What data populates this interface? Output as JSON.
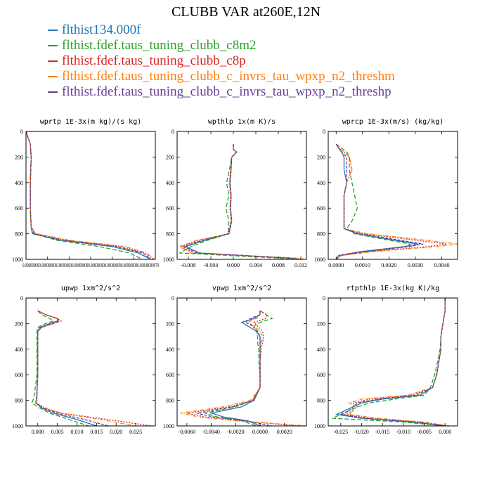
{
  "title": "CLUBB VAR at260E,12N",
  "legend": [
    {
      "label": "flthist134.000f",
      "color": "#1f77b4"
    },
    {
      "label": "flthist.fdef.taus_tuning_clubb_c8m2",
      "color": "#2ca02c"
    },
    {
      "label": "flthist.fdef.taus_tuning_clubb_c8p",
      "color": "#d62728"
    },
    {
      "label": "flthist.fdef.taus_tuning_clubb_c_invrs_tau_wpxp_n2_threshm",
      "color": "#ff7f0e"
    },
    {
      "label": "flthist.fdef.taus_tuning_clubb_c_invrs_tau_wpxp_n2_threshp",
      "color": "#6a3d9a"
    }
  ],
  "series_colors": [
    "#1f77b4",
    "#2ca02c",
    "#d62728",
    "#ff7f0e",
    "#6a3d9a"
  ],
  "chart_data": [
    {
      "type": "line",
      "title": "wprtp  1E-3x(m kg)/(s kg)",
      "xlim": [
        0,
        3e-10
      ],
      "ylim": [
        1000,
        0
      ],
      "y_ticks": [
        "0",
        "200",
        "400",
        "600",
        "800",
        "1000"
      ],
      "x_tick_labels": "0.000000000.000000000.000000000.000000000.000000000.000000000.000000000.00000000970",
      "y": [
        0,
        100,
        200,
        400,
        600,
        750,
        800,
        850,
        900,
        950,
        1000
      ],
      "series": [
        {
          "x": [
            0,
            1e-11,
            1.2e-11,
            1e-11,
            1e-11,
            1.2e-11,
            1.5e-11,
            8e-11,
            2e-10,
            2.6e-10,
            2.9e-10
          ]
        },
        {
          "x": [
            0,
            1e-11,
            1.2e-11,
            1e-11,
            1e-11,
            1.2e-11,
            2e-11,
            7e-11,
            1.7e-10,
            2.4e-10,
            2.7e-10
          ]
        },
        {
          "x": [
            0,
            1e-11,
            1.2e-11,
            1e-11,
            1e-11,
            1.2e-11,
            2e-11,
            9.5e-11,
            2.2e-10,
            2.75e-10,
            2.95e-10
          ]
        },
        {
          "x": [
            0,
            1e-11,
            1.2e-11,
            1e-11,
            1e-11,
            1.2e-11,
            2.5e-11,
            1e-10,
            2.3e-10,
            2.8e-10,
            2.98e-10
          ]
        },
        {
          "x": [
            0,
            1e-11,
            1.2e-11,
            1e-11,
            1e-11,
            1.2e-11,
            1.8e-11,
            8.5e-11,
            2.1e-10,
            2.7e-10,
            2.9e-10
          ]
        }
      ]
    },
    {
      "type": "line",
      "title": "wpthlp  1x(m K)/s",
      "xlim": [
        -0.01,
        0.013
      ],
      "ylim": [
        1000,
        0
      ],
      "x_ticks": [
        -0.008,
        -0.004,
        0.0,
        0.004,
        0.008,
        0.012
      ],
      "x_tick_labels": [
        "-0.008",
        "-0.004",
        "0.000",
        "0.004",
        "0.008",
        "0.012"
      ],
      "y_ticks": [
        "0",
        "200",
        "400",
        "600",
        "800",
        "1000"
      ],
      "y": [
        100,
        140,
        160,
        180,
        200,
        300,
        400,
        500,
        600,
        700,
        800,
        850,
        900,
        950,
        990,
        1000
      ],
      "series": [
        {
          "x": [
            0.0,
            0.0,
            0.0005,
            0.0002,
            -0.0003,
            -0.0004,
            -0.0006,
            -0.0004,
            -0.0005,
            -0.0003,
            -0.0008,
            -0.005,
            -0.0085,
            -0.006,
            0.01,
            0.012
          ]
        },
        {
          "x": [
            0.0,
            0.0,
            0.0006,
            0.0003,
            -0.0003,
            -0.0007,
            -0.0012,
            -0.0008,
            -0.0013,
            -0.0008,
            -0.0009,
            -0.0045,
            -0.0075,
            -0.0095,
            0.008,
            0.011
          ]
        },
        {
          "x": [
            0.0,
            0.0,
            0.0005,
            0.0002,
            -0.0003,
            -0.0005,
            -0.0007,
            -0.0005,
            -0.0006,
            -0.0004,
            -0.001,
            -0.006,
            -0.0092,
            -0.007,
            0.01,
            0.012
          ]
        },
        {
          "x": [
            0.0,
            0.0,
            0.0005,
            0.0002,
            -0.0003,
            -0.0004,
            -0.0006,
            -0.0004,
            -0.0005,
            -0.0003,
            -0.0007,
            -0.0065,
            -0.0096,
            -0.0075,
            0.011,
            0.013
          ]
        },
        {
          "x": [
            0.0,
            0.0,
            0.0005,
            0.0002,
            -0.0003,
            -0.0004,
            -0.0006,
            -0.0004,
            -0.0005,
            -0.0003,
            -0.0008,
            -0.0055,
            -0.0088,
            -0.0065,
            0.01,
            0.012
          ]
        }
      ]
    },
    {
      "type": "line",
      "title": "wprcp  1E-3x(m/s) (kg/kg)",
      "xlim": [
        -0.0003,
        0.0046
      ],
      "ylim": [
        1000,
        0
      ],
      "x_ticks": [
        0.0,
        0.001,
        0.002,
        0.003,
        0.004
      ],
      "x_tick_labels": [
        "0.0000",
        "0.0010",
        "0.0020",
        "0.0030",
        "0.0040"
      ],
      "y_ticks": [
        "0",
        "200",
        "400",
        "600",
        "800",
        "1000"
      ],
      "y": [
        100,
        130,
        160,
        200,
        300,
        400,
        500,
        600,
        700,
        760,
        800,
        850,
        880,
        900,
        940,
        970,
        1000
      ],
      "series": [
        {
          "x": [
            0.0,
            0.0001,
            0.0002,
            0.0003,
            0.0003,
            0.0004,
            0.0003,
            0.0003,
            0.0003,
            0.0003,
            0.0008,
            0.0022,
            0.0031,
            0.0026,
            0.0009,
            0.0001,
            0.0
          ]
        },
        {
          "x": [
            0.0,
            0.0002,
            0.0004,
            0.0005,
            0.0005,
            0.0006,
            0.0007,
            0.0008,
            0.0006,
            0.0004,
            0.0007,
            0.002,
            0.0028,
            0.0027,
            0.0012,
            0.0002,
            0.0
          ]
        },
        {
          "x": [
            0.0,
            0.0001,
            0.0003,
            0.0005,
            0.0006,
            0.0004,
            0.0003,
            0.0003,
            0.0003,
            0.0003,
            0.001,
            0.003,
            0.0042,
            0.0035,
            0.0012,
            0.0002,
            0.0
          ]
        },
        {
          "x": [
            0.0,
            0.0001,
            0.0003,
            0.0005,
            0.0006,
            0.0004,
            0.0003,
            0.0003,
            0.0003,
            0.0003,
            0.0012,
            0.0034,
            0.0046,
            0.0038,
            0.0014,
            0.0002,
            0.0
          ]
        },
        {
          "x": [
            0.0,
            0.0001,
            0.0002,
            0.0004,
            0.0004,
            0.0004,
            0.0003,
            0.0003,
            0.0003,
            0.0003,
            0.0009,
            0.0024,
            0.0033,
            0.0028,
            0.001,
            0.0001,
            0.0
          ]
        }
      ]
    },
    {
      "type": "line",
      "title": "upwp  1xm^2/s^2",
      "xlim": [
        -0.003,
        0.03
      ],
      "ylim": [
        1000,
        0
      ],
      "x_ticks": [
        0.0,
        0.005,
        0.01,
        0.015,
        0.02,
        0.025
      ],
      "x_tick_labels": [
        "0.000",
        "0.005",
        "0.010",
        "0.015",
        "0.020",
        "0.025"
      ],
      "y_ticks": [
        "0",
        "200",
        "400",
        "600",
        "800",
        "1000"
      ],
      "y": [
        100,
        130,
        160,
        180,
        200,
        230,
        260,
        300,
        400,
        600,
        780,
        820,
        860,
        900,
        950,
        1000
      ],
      "series": [
        {
          "x": [
            0.0,
            0.002,
            0.005,
            0.005,
            0.003,
            0.0005,
            0.0,
            0.0,
            0.0,
            0.0,
            -0.0003,
            -0.0005,
            0.001,
            0.004,
            0.01,
            0.015
          ]
        },
        {
          "x": [
            0.0,
            0.001,
            0.003,
            0.004,
            0.002,
            0.0,
            -0.0002,
            -0.0002,
            -0.0002,
            -0.0002,
            -0.001,
            -0.0015,
            0.0005,
            0.003,
            0.008,
            0.013
          ]
        },
        {
          "x": [
            0.0,
            0.002,
            0.005,
            0.006,
            0.004,
            0.001,
            0.0,
            0.0,
            0.0,
            0.0,
            -0.0002,
            -0.0004,
            0.0015,
            0.006,
            0.018,
            0.029
          ]
        },
        {
          "x": [
            0.0,
            0.002,
            0.005,
            0.006,
            0.004,
            0.001,
            0.0,
            0.0,
            0.0,
            0.0,
            -0.0002,
            -0.0004,
            0.002,
            0.006,
            0.016,
            0.025
          ]
        },
        {
          "x": [
            0.0,
            0.002,
            0.005,
            0.0055,
            0.0035,
            0.0008,
            0.0,
            0.0,
            0.0,
            0.0,
            -0.0003,
            -0.0005,
            0.0012,
            0.005,
            0.012,
            0.018
          ]
        }
      ]
    },
    {
      "type": "line",
      "title": "vpwp  1xm^2/s^2",
      "xlim": [
        -0.0068,
        0.0038
      ],
      "ylim": [
        1000,
        0
      ],
      "x_ticks": [
        -0.006,
        -0.004,
        -0.002,
        0.0,
        0.002
      ],
      "x_tick_labels": [
        "-0.0060",
        "-0.0040",
        "-0.0020",
        "0.0000",
        "0.0020"
      ],
      "y_ticks": [
        "0",
        "200",
        "400",
        "600",
        "800",
        "1000"
      ],
      "y": [
        100,
        130,
        160,
        190,
        220,
        260,
        300,
        350,
        400,
        500,
        600,
        700,
        800,
        850,
        900,
        930,
        960,
        1000
      ],
      "series": [
        {
          "x": [
            0.0,
            0.0,
            -0.0005,
            -0.0015,
            -0.001,
            -0.0003,
            0.0,
            0.0,
            0.0,
            0.0,
            0.0,
            0.0,
            -0.0005,
            -0.0015,
            -0.004,
            -0.003,
            -0.001,
            0.0
          ]
        },
        {
          "x": [
            0.0,
            0.0005,
            0.001,
            0.0,
            -0.0005,
            -0.0003,
            -0.0002,
            -0.0002,
            -0.0001,
            -0.0001,
            0.0,
            0.0,
            -0.0006,
            -0.002,
            -0.0045,
            -0.0035,
            -0.0015,
            -0.0003
          ]
        },
        {
          "x": [
            0.0,
            0.0005,
            0.0005,
            -0.0005,
            -0.0002,
            0.0002,
            0.0003,
            0.0002,
            0.0001,
            0.0,
            0.0,
            0.0,
            -0.0005,
            -0.0025,
            -0.006,
            -0.0045,
            -0.0015,
            0.003
          ]
        },
        {
          "x": [
            0.0,
            0.0,
            -0.0003,
            -0.001,
            -0.0005,
            0.0,
            0.0002,
            0.0001,
            0.0,
            0.0,
            0.0,
            0.0,
            -0.0008,
            -0.003,
            -0.0065,
            -0.005,
            -0.002,
            0.0038
          ]
        },
        {
          "x": [
            0.0,
            0.0,
            -0.0008,
            -0.0012,
            -0.0006,
            -0.0002,
            0.0,
            0.0,
            0.0,
            0.0,
            0.0,
            0.0,
            -0.0006,
            -0.0022,
            -0.0052,
            -0.0038,
            -0.0012,
            0.001
          ]
        }
      ]
    },
    {
      "type": "line",
      "title": "rtpthlp  1E-3x(kg K)/kg",
      "xlim": [
        -0.028,
        0.003
      ],
      "ylim": [
        1000,
        0
      ],
      "x_ticks": [
        -0.025,
        -0.02,
        -0.015,
        -0.01,
        -0.005,
        0.0
      ],
      "x_tick_labels": [
        "-0.025",
        "-0.020",
        "-0.015",
        "-0.010",
        "-0.005",
        "0.000"
      ],
      "y_ticks": [
        "0",
        "200",
        "400",
        "600",
        "800",
        "1000"
      ],
      "y": [
        0,
        100,
        200,
        300,
        400,
        500,
        600,
        700,
        760,
        790,
        820,
        850,
        880,
        910,
        940,
        970,
        1000
      ],
      "series": [
        {
          "x": [
            0.0,
            0.0,
            -0.0005,
            -0.001,
            -0.001,
            -0.0015,
            -0.002,
            -0.003,
            -0.006,
            -0.015,
            -0.02,
            -0.022,
            -0.024,
            -0.026,
            -0.02,
            -0.008,
            0.0
          ]
        },
        {
          "x": [
            0.0,
            0.0,
            -0.0005,
            -0.001,
            -0.0012,
            -0.0018,
            -0.0025,
            -0.0035,
            -0.005,
            -0.012,
            -0.018,
            -0.021,
            -0.023,
            -0.025,
            -0.027,
            -0.01,
            0.0
          ]
        },
        {
          "x": [
            0.0,
            0.0,
            -0.0005,
            -0.001,
            -0.001,
            -0.0015,
            -0.002,
            -0.003,
            -0.008,
            -0.018,
            -0.022,
            -0.022,
            -0.022,
            -0.024,
            -0.018,
            -0.006,
            0.001
          ]
        },
        {
          "x": [
            0.0,
            0.0,
            -0.0005,
            -0.001,
            -0.001,
            -0.0015,
            -0.002,
            -0.003,
            -0.009,
            -0.02,
            -0.023,
            -0.021,
            -0.022,
            -0.023,
            -0.016,
            -0.005,
            0.001
          ]
        },
        {
          "x": [
            0.0,
            0.0,
            -0.0005,
            -0.001,
            -0.001,
            -0.0015,
            -0.002,
            -0.003,
            -0.007,
            -0.016,
            -0.021,
            -0.022,
            -0.023,
            -0.025,
            -0.019,
            -0.007,
            0.0
          ]
        }
      ]
    }
  ]
}
